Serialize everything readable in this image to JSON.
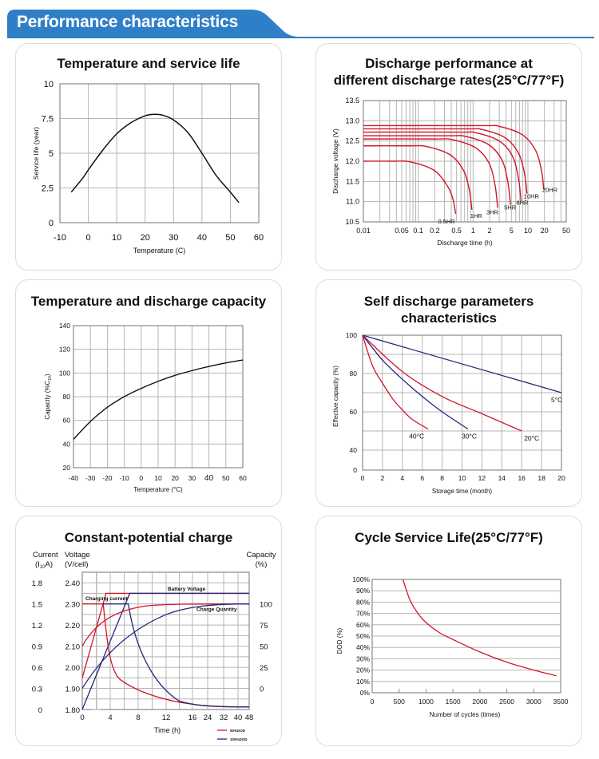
{
  "header": {
    "title": "Performance characteristics",
    "color": "#2f7fc8"
  },
  "colors": {
    "red": "#d4142a",
    "blue": "#25287a",
    "grid": "#b5b5b5",
    "black": "#111111"
  },
  "chart_data": [
    {
      "id": "temp-service-life",
      "type": "line",
      "title": "Temperature and service life",
      "xlabel": "Temperature (C)",
      "ylabel": "Service life (year)",
      "xlim": [
        -10,
        60
      ],
      "ylim": [
        0,
        10
      ],
      "xticks": [
        "-10",
        "0",
        "10",
        "20",
        "30",
        "40",
        "50",
        "60"
      ],
      "yticks": [
        "0",
        "2.5",
        "5",
        "7.5",
        "10"
      ],
      "grid": true,
      "series": [
        {
          "name": "Service life",
          "x": [
            -6,
            -2,
            0,
            5,
            10,
            15,
            20,
            23,
            26,
            30,
            35,
            40,
            45,
            50,
            53
          ],
          "y": [
            2.2,
            3.2,
            3.8,
            5.2,
            6.4,
            7.2,
            7.7,
            7.8,
            7.75,
            7.4,
            6.5,
            5.0,
            3.4,
            2.2,
            1.45
          ]
        }
      ]
    },
    {
      "id": "discharge-rates",
      "type": "line",
      "title_lines": [
        "Discharge performance at",
        "different discharge rates(25°C/77°F)"
      ],
      "xlabel": "Discharge time (h)",
      "ylabel": "Discharge voltage (V)",
      "xscale": "log",
      "xlim": [
        0.01,
        50
      ],
      "ylim": [
        10.5,
        13.5
      ],
      "xticks": [
        "0.01",
        "0.05",
        "0.1",
        "0.2",
        "0.5",
        "1",
        "2",
        "5",
        "10",
        "20",
        "50"
      ],
      "yticks": [
        "10.5",
        "11.0",
        "11.5",
        "12.0",
        "12.5",
        "13.0",
        "13.5"
      ],
      "grid": true,
      "series": [
        {
          "name": "0.5HR",
          "plateau": 12.0,
          "end_time": 0.48,
          "end_voltage": 10.7
        },
        {
          "name": "1HR",
          "plateau": 12.38,
          "end_time": 0.95,
          "end_voltage": 10.8
        },
        {
          "name": "3HR",
          "plateau": 12.55,
          "end_time": 2.8,
          "end_voltage": 10.85
        },
        {
          "name": "5HR",
          "plateau": 12.63,
          "end_time": 4.8,
          "end_voltage": 10.92
        },
        {
          "name": "8HR",
          "plateau": 12.72,
          "end_time": 7.5,
          "end_voltage": 11.0
        },
        {
          "name": "10HR",
          "plateau": 12.8,
          "end_time": 9.6,
          "end_voltage": 11.2
        },
        {
          "name": "20HR",
          "plateau": 12.88,
          "end_time": 19.5,
          "end_voltage": 11.3
        }
      ]
    },
    {
      "id": "temp-discharge-capacity",
      "type": "line",
      "title": "Temperature and discharge capacity",
      "xlabel": "Temperature (°C)",
      "ylabel": "Capacity (%C",
      "ylabel_sub": "10",
      "ylabel_end": ")",
      "xlim": [
        -40,
        60
      ],
      "ylim": [
        20,
        140
      ],
      "xticks": [
        "-40",
        "-30",
        "-20",
        "-10",
        "0",
        "10",
        "20",
        "30",
        "40",
        "50",
        "60"
      ],
      "yticks": [
        "20",
        "40",
        "60",
        "80",
        "100",
        "120",
        "140"
      ],
      "grid": true,
      "series": [
        {
          "name": "Capacity",
          "x": [
            -40,
            -30,
            -20,
            -10,
            0,
            10,
            20,
            30,
            40,
            50,
            60
          ],
          "y": [
            44,
            59,
            71,
            80,
            87,
            93,
            98,
            102,
            105.5,
            108.5,
            111
          ]
        }
      ]
    },
    {
      "id": "self-discharge",
      "type": "line",
      "title": "Self discharge parameters characteristics",
      "xlabel": "Storage time (month)",
      "ylabel": "Effective capacity (%)",
      "xlim": [
        0,
        20
      ],
      "ylim": [
        0,
        100
      ],
      "xticks": [
        "0",
        "2",
        "4",
        "6",
        "8",
        "10",
        "12",
        "14",
        "16",
        "18",
        "20"
      ],
      "yticks": [
        "0",
        "40",
        "60",
        "80",
        "100"
      ],
      "grid": true,
      "series": [
        {
          "name": "5°C",
          "color": "blue",
          "x": [
            0,
            20
          ],
          "y": [
            100,
            70
          ]
        },
        {
          "name": "20°C",
          "color": "red",
          "x": [
            0,
            4,
            8,
            12,
            16
          ],
          "y": [
            100,
            81,
            68,
            59,
            50
          ]
        },
        {
          "name": "30°C",
          "color": "blue",
          "x": [
            0,
            2,
            4,
            6,
            8,
            10.6
          ],
          "y": [
            100,
            87,
            77,
            68,
            60,
            51
          ]
        },
        {
          "name": "40°C",
          "color": "red",
          "x": [
            0,
            1,
            2,
            3,
            4,
            5,
            6.6
          ],
          "y": [
            100,
            84,
            75,
            67,
            61,
            56,
            51
          ]
        }
      ]
    },
    {
      "id": "constant-potential-charge",
      "type": "line",
      "title": "Constant-potential charge",
      "xlabel": "Time (h)",
      "left_axis_title": [
        "Current",
        "(I10A)"
      ],
      "current_axis": {
        "title_line1": "Current",
        "title_line2_pre": "(I",
        "title_line2_sub": "10",
        "title_line2_post": "A)",
        "ticks": [
          "0",
          "0.3",
          "0.6",
          "0.9",
          "1.2",
          "1.5",
          "1.8"
        ]
      },
      "voltage_axis": {
        "title_line1": "Voltage",
        "title_line2": "(V/cell)",
        "ticks": [
          "1.80",
          "1.90",
          "2.00",
          "2.10",
          "2.20",
          "2.30",
          "2.40"
        ],
        "ylim": [
          1.8,
          2.45
        ]
      },
      "capacity_axis": {
        "title_line1": "Capacity",
        "title_line2": "(%)",
        "ticks": [
          "0",
          "25",
          "50",
          "75",
          "100"
        ]
      },
      "xticks": [
        "0",
        "4",
        "8",
        "12",
        "16",
        "24",
        "32",
        "40",
        "48"
      ],
      "annotations": [
        "Battery Voltage",
        "Charging current",
        "Charge Quantity"
      ],
      "legend": [
        {
          "label": "50%DOD",
          "color": "red"
        },
        {
          "label": "100%DOD",
          "color": "blue"
        }
      ],
      "legend_position": "bottom-right",
      "grid": true
    },
    {
      "id": "cycle-service-life",
      "type": "line",
      "title": "Cycle Service Life(25°C/77°F)",
      "xlabel": "Number of cycles (times)",
      "ylabel": "DOD  (%)",
      "xlim": [
        0,
        3500
      ],
      "ylim": [
        0,
        100
      ],
      "xticks": [
        "0",
        "500",
        "1000",
        "1500",
        "2000",
        "2500",
        "3000",
        "3500"
      ],
      "yticks": [
        "0%",
        "10%",
        "20%",
        "30%",
        "40%",
        "50%",
        "60%",
        "70%",
        "80%",
        "90%",
        "100%"
      ],
      "grid": true,
      "series": [
        {
          "name": "DOD",
          "x": [
            570,
            700,
            850,
            1000,
            1250,
            1500,
            2000,
            2500,
            3000,
            3420
          ],
          "y": [
            100,
            82,
            70,
            62,
            53,
            47,
            36,
            27,
            20,
            15
          ]
        }
      ]
    }
  ]
}
